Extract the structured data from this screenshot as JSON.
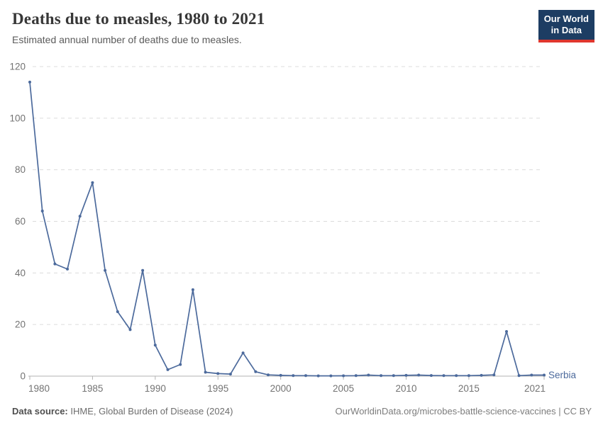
{
  "header": {
    "title": "Deaths due to measles, 1980 to 2021",
    "subtitle": "Estimated annual number of deaths due to measles.",
    "logo": {
      "line1": "Our World",
      "line2": "in Data",
      "bg_color": "#1d3d63",
      "accent_color": "#e0362e"
    }
  },
  "footer": {
    "source_label": "Data source:",
    "source_text": " IHME, Global Burden of Disease (2024)",
    "credit_text": "OurWorldinData.org/microbes-battle-science-vaccines | CC BY"
  },
  "chart_data": {
    "type": "line",
    "title": "Deaths due to measles, 1980 to 2021",
    "subtitle": "Estimated annual number of deaths due to measles.",
    "xlabel": "",
    "ylabel": "",
    "x": [
      1980,
      1981,
      1982,
      1983,
      1984,
      1985,
      1986,
      1987,
      1988,
      1989,
      1990,
      1991,
      1992,
      1993,
      1994,
      1995,
      1996,
      1997,
      1998,
      1999,
      2000,
      2001,
      2002,
      2003,
      2004,
      2005,
      2006,
      2007,
      2008,
      2009,
      2010,
      2011,
      2012,
      2013,
      2014,
      2015,
      2016,
      2017,
      2018,
      2019,
      2020,
      2021
    ],
    "series": [
      {
        "name": "Serbia",
        "color": "#4c6a9c",
        "values": [
          114,
          64,
          43.5,
          41.5,
          62,
          75,
          41,
          25,
          18,
          41,
          12,
          2.5,
          4.5,
          33.5,
          1.5,
          1,
          0.8,
          9,
          1.7,
          0.5,
          0.3,
          0.2,
          0.2,
          0.1,
          0.1,
          0.15,
          0.2,
          0.4,
          0.2,
          0.2,
          0.3,
          0.4,
          0.25,
          0.2,
          0.2,
          0.2,
          0.3,
          0.5,
          17.3,
          0.2,
          0.4,
          0.4
        ]
      }
    ],
    "ylim": [
      0,
      120
    ],
    "yticks": [
      0,
      20,
      40,
      60,
      80,
      100,
      120
    ],
    "xticks": [
      1980,
      1985,
      1990,
      1995,
      2000,
      2005,
      2010,
      2015,
      2021
    ],
    "grid": "horizontal-dashed",
    "grid_color": "#dcdcdc",
    "axis_color": "#b3b3b3",
    "tick_label_color": "#737373",
    "legend": "entity-label-at-line-end"
  }
}
